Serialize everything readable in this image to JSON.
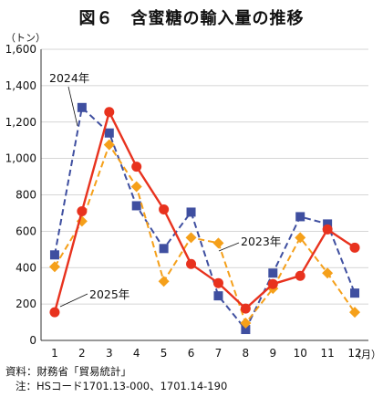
{
  "title": "図６　含蜜糖の輸入量の推移",
  "y_unit": "（トン）",
  "x_unit": "（月）",
  "source": "資料：財務省「貿易統計」",
  "note": "注：HSコード1701.13-000、1701.14-190",
  "chart_data": {
    "type": "line",
    "categories": [
      "1",
      "2",
      "3",
      "4",
      "5",
      "6",
      "7",
      "8",
      "9",
      "10",
      "11",
      "12"
    ],
    "ylim": [
      0,
      1600
    ],
    "yticks": [
      "0",
      "200",
      "400",
      "600",
      "800",
      "1,000",
      "1,200",
      "1,400",
      "1,600"
    ],
    "grid": true,
    "series": [
      {
        "name": "2024年",
        "color": "#3f4fa0",
        "line": "dashed",
        "marker": "square",
        "values": [
          470,
          1280,
          1140,
          740,
          505,
          705,
          245,
          60,
          370,
          680,
          640,
          260
        ]
      },
      {
        "name": "2023年",
        "color": "#f5a01a",
        "line": "dashed",
        "marker": "diamond",
        "values": [
          405,
          655,
          1075,
          845,
          325,
          565,
          535,
          95,
          285,
          565,
          370,
          155
        ]
      },
      {
        "name": "2025年",
        "color": "#e8321e",
        "line": "solid",
        "marker": "circle",
        "values": [
          155,
          710,
          1255,
          955,
          720,
          420,
          315,
          175,
          310,
          355,
          610,
          510
        ]
      }
    ]
  }
}
